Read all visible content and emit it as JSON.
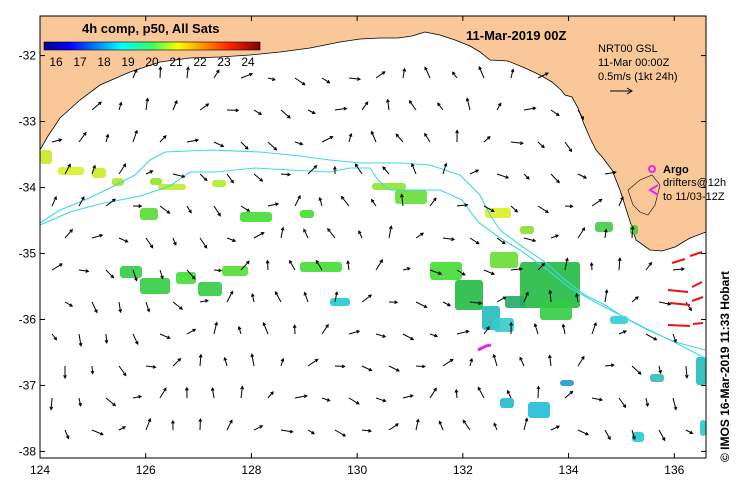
{
  "header": {
    "colorbar_title": "4h comp, p50, All Sats",
    "date_title": "11-Mar-2019 00Z"
  },
  "colorbar": {
    "ticks": [
      "16",
      "17",
      "18",
      "19",
      "20",
      "21",
      "22",
      "23",
      "24"
    ],
    "min": 15.5,
    "max": 24.5
  },
  "current_info": {
    "line1": "NRT00 GSL",
    "line2": "11-Mar 00:00Z",
    "line3": "0.5m/s (1kt 24h)"
  },
  "legend": {
    "argo_label": "Argo",
    "drifters_line1": "drifters@12h",
    "drifters_line2": "to 11/03-12Z"
  },
  "axes": {
    "x_ticks": [
      "124",
      "126",
      "128",
      "130",
      "132",
      "134",
      "136"
    ],
    "x_values": [
      124,
      126,
      128,
      130,
      132,
      134,
      136
    ],
    "y_ticks": [
      "-32",
      "-33",
      "-34",
      "-35",
      "-36",
      "-37",
      "-38"
    ],
    "y_values": [
      -32,
      -33,
      -34,
      -35,
      -36,
      -37,
      -38
    ],
    "lon_range": [
      124,
      136.6
    ],
    "lat_range": [
      -31.4,
      -38.1
    ]
  },
  "credit": "© IMOS 16-Mar-2019 11:33 Hobart",
  "colors": {
    "land": "#fac898",
    "contour": "#3fd8e8",
    "argo": "#ee22ee",
    "drifter": "#ee1111"
  }
}
